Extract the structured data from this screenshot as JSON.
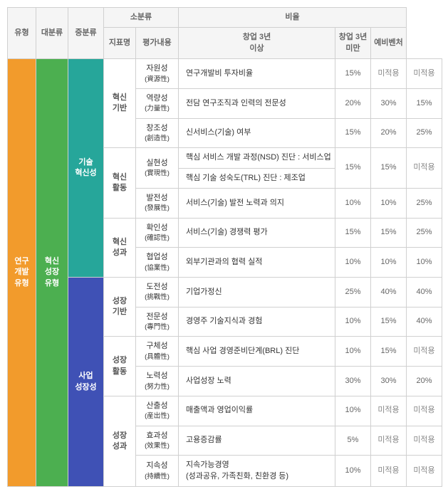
{
  "headers": {
    "type": "유형",
    "large": "대분류",
    "mid": "중분류",
    "sub": "소분류",
    "indicator": "지표명",
    "evalContent": "평가내용",
    "ratio": "비율",
    "over3": "창업 3년\n이상",
    "under3": "창업 3년\n미만",
    "prevc": "예비벤처"
  },
  "typeCol": {
    "label": "연구\n개발\n유형"
  },
  "largeCol": {
    "label": "혁신\n성장\n유형"
  },
  "mid1": {
    "label": "기술\n혁신성"
  },
  "mid2": {
    "label": "사업\n성장성"
  },
  "groups": {
    "innBase": "혁신\n기반",
    "innAct": "혁신\n활동",
    "innRes": "혁신\n성과",
    "groBase": "성장\n기반",
    "groAct": "성장\n활동",
    "groRes": "성장\n성과"
  },
  "rows": [
    {
      "ind": "자원성",
      "indSub": "(資源性)",
      "eval": "연구개발비 투자비율",
      "r": [
        "15%",
        "미적용",
        "미적용"
      ]
    },
    {
      "ind": "역량성",
      "indSub": "(力量性)",
      "eval": "전담 연구조직과 인력의 전문성",
      "r": [
        "20%",
        "30%",
        "15%"
      ]
    },
    {
      "ind": "창조성",
      "indSub": "(創造性)",
      "eval": "신서비스(기술) 여부",
      "r": [
        "15%",
        "20%",
        "25%"
      ]
    },
    {
      "ind": "실현성",
      "indSub": "(實現性)",
      "eval": "핵심 서비스 개발 과정(NSD) 진단 : 서비스업",
      "r": [
        "15%",
        "15%",
        "미적용"
      ]
    },
    {
      "ind": "",
      "indSub": "",
      "eval": "핵심 기술 성숙도(TRL) 진단 : 제조업",
      "r": [
        "",
        "",
        ""
      ]
    },
    {
      "ind": "발전성",
      "indSub": "(發展性)",
      "eval": "서비스(기술) 발전 노력과 의지",
      "r": [
        "10%",
        "10%",
        "25%"
      ]
    },
    {
      "ind": "확인성",
      "indSub": "(確認性)",
      "eval": "서비스(기술) 경쟁력 평가",
      "r": [
        "15%",
        "15%",
        "25%"
      ]
    },
    {
      "ind": "협업성",
      "indSub": "(協業性)",
      "eval": "외부기관과의 협력 실적",
      "r": [
        "10%",
        "10%",
        "10%"
      ]
    },
    {
      "ind": "도전성",
      "indSub": "(挑戰性)",
      "eval": "기업가정신",
      "r": [
        "25%",
        "40%",
        "40%"
      ]
    },
    {
      "ind": "전문성",
      "indSub": "(專門性)",
      "eval": "경영주 기술지식과 경험",
      "r": [
        "10%",
        "15%",
        "40%"
      ]
    },
    {
      "ind": "구체성",
      "indSub": "(具體性)",
      "eval": "핵심 사업 경영준비단계(BRL) 진단",
      "r": [
        "10%",
        "15%",
        "미적용"
      ]
    },
    {
      "ind": "노력성",
      "indSub": "(努力性)",
      "eval": "사업성장 노력",
      "r": [
        "30%",
        "30%",
        "20%"
      ]
    },
    {
      "ind": "산출성",
      "indSub": "(産出性)",
      "eval": "매출액과 영업이익률",
      "r": [
        "10%",
        "미적용",
        "미적용"
      ]
    },
    {
      "ind": "효과성",
      "indSub": "(效果性)",
      "eval": "고용증감률",
      "r": [
        "5%",
        "미적용",
        "미적용"
      ]
    },
    {
      "ind": "지속성",
      "indSub": "(持續性)",
      "eval": "지속가능경영\n(성과공유, 가족친화, 친환경 등)",
      "r": [
        "10%",
        "미적용",
        "미적용"
      ]
    }
  ],
  "colWidths": {
    "type": 40,
    "large": 45,
    "mid": 50,
    "group": 45,
    "ind": 60,
    "eval": 220,
    "r0": 50,
    "r1": 50,
    "r2": 50
  },
  "colors": {
    "orange": "#f29b2c",
    "green": "#4caf50",
    "teal": "#26a69a",
    "navy": "#3f51b5",
    "border": "#d0d0d0",
    "headerBg": "#f5f5f5"
  }
}
